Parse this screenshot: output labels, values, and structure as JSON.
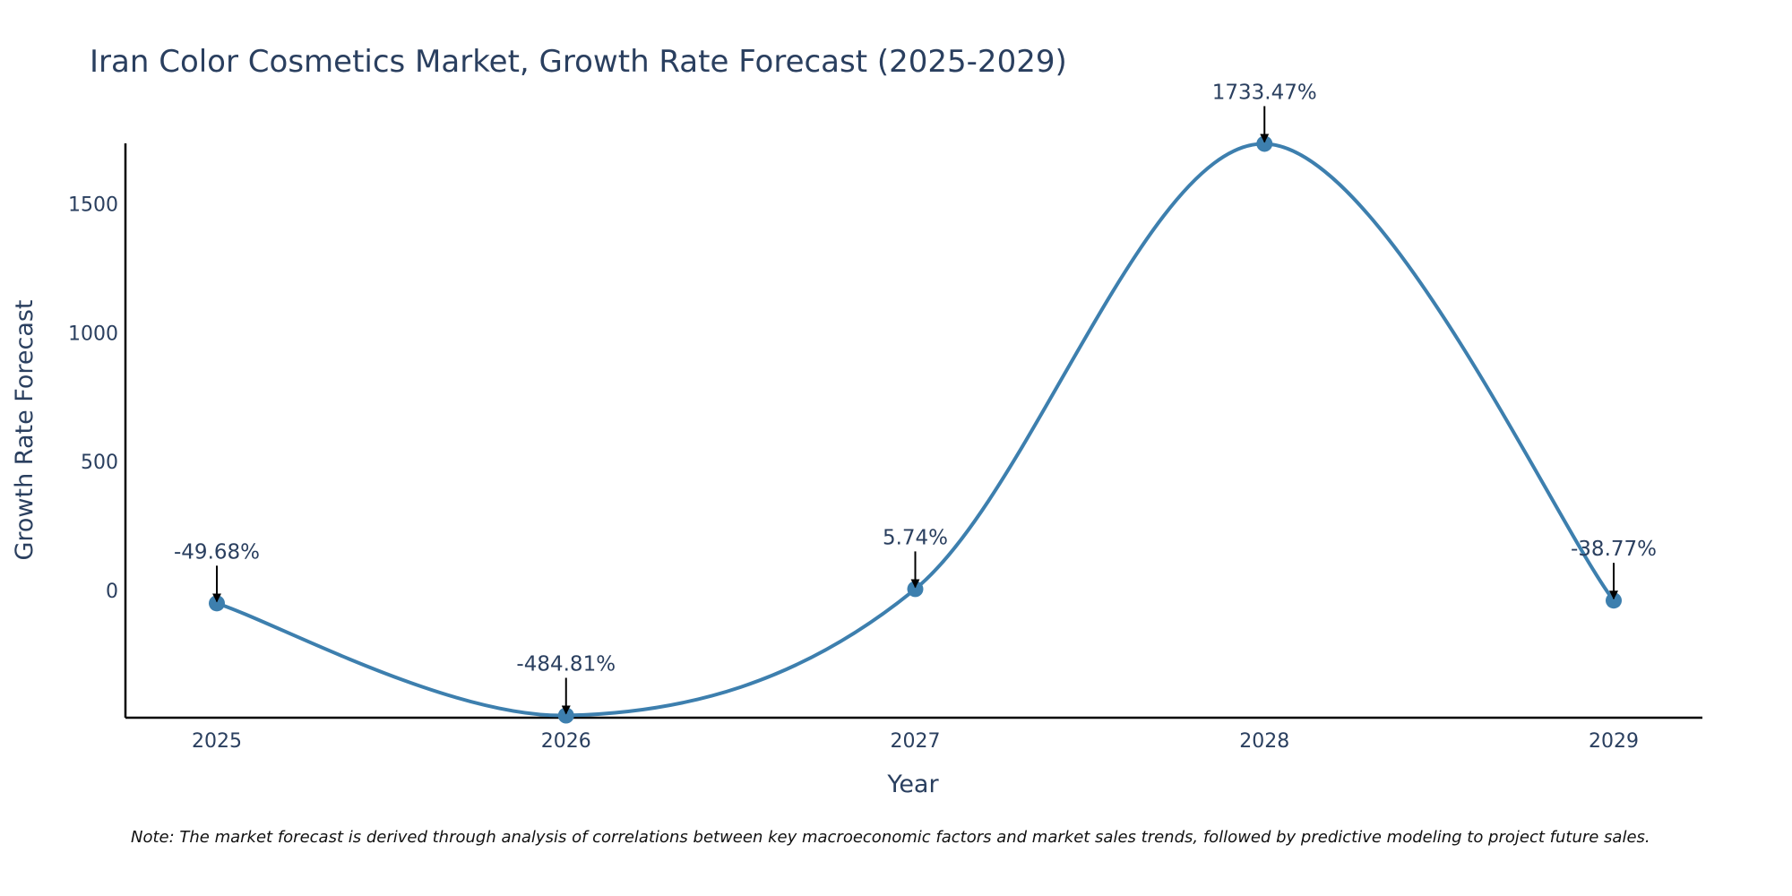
{
  "chart_data": {
    "type": "line",
    "title": "Iran Color Cosmetics Market, Growth Rate Forecast (2025-2029)",
    "xlabel": "Year",
    "ylabel": "Growth Rate Forecast",
    "categories": [
      "2025",
      "2026",
      "2027",
      "2028",
      "2029"
    ],
    "values": [
      -49.68,
      -484.81,
      5.74,
      1733.47,
      -38.77
    ],
    "labels": [
      "-49.68%",
      "-484.81%",
      "5.74%",
      "1733.47%",
      "-38.77%"
    ],
    "yticks": [
      0,
      500,
      1000,
      1500
    ],
    "ylim": [
      -490,
      1735
    ],
    "line_color": "#3d7fae",
    "note": "Note: The market forecast is derived through analysis of correlations between key macroeconomic factors and market sales trends, followed by predictive modeling to project future sales."
  }
}
